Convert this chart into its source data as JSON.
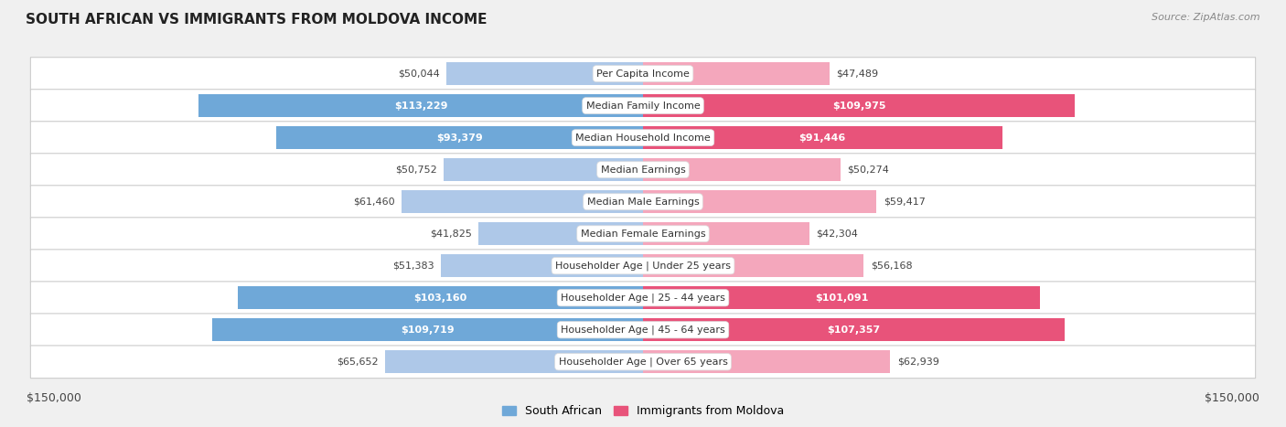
{
  "title": "SOUTH AFRICAN VS IMMIGRANTS FROM MOLDOVA INCOME",
  "source": "Source: ZipAtlas.com",
  "categories": [
    "Per Capita Income",
    "Median Family Income",
    "Median Household Income",
    "Median Earnings",
    "Median Male Earnings",
    "Median Female Earnings",
    "Householder Age | Under 25 years",
    "Householder Age | 25 - 44 years",
    "Householder Age | 45 - 64 years",
    "Householder Age | Over 65 years"
  ],
  "south_african": [
    50044,
    113229,
    93379,
    50752,
    61460,
    41825,
    51383,
    103160,
    109719,
    65652
  ],
  "moldova": [
    47489,
    109975,
    91446,
    50274,
    59417,
    42304,
    56168,
    101091,
    107357,
    62939
  ],
  "max_val": 150000,
  "bar_color_left_large": "#6fa8d8",
  "bar_color_left_small": "#aec8e8",
  "bar_color_right_large": "#e8537a",
  "bar_color_right_small": "#f4a7bc",
  "large_threshold": 70000,
  "label_inside_color": "#ffffff",
  "label_outside_color": "#444444",
  "inside_threshold": 70000,
  "bg_color": "#f0f0f0",
  "row_bg": "#ffffff",
  "legend_left": "South African",
  "legend_right": "Immigrants from Moldova",
  "xlabel_left": "$150,000",
  "xlabel_right": "$150,000",
  "title_fontsize": 11,
  "source_fontsize": 8,
  "label_fontsize": 8,
  "cat_fontsize": 8
}
